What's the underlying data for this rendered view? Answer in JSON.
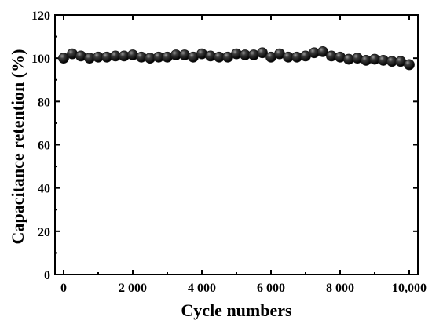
{
  "chart_data": {
    "type": "scatter",
    "xlabel": "Cycle numbers",
    "ylabel": "Capacitance retention (%)",
    "xlim": [
      -250,
      10250
    ],
    "ylim": [
      0,
      120
    ],
    "xticks": [
      0,
      2000,
      4000,
      6000,
      8000,
      10000
    ],
    "xtick_labels": [
      "0",
      "2 000",
      "4 000",
      "6 000",
      "8 000",
      "10,000"
    ],
    "yticks": [
      0,
      20,
      40,
      60,
      80,
      100,
      120
    ],
    "ytick_labels": [
      "0",
      "20",
      "40",
      "60",
      "80",
      "100",
      "120"
    ],
    "grid": false,
    "marker_color": "#1a1a1a",
    "series": [
      {
        "x": [
          0,
          250,
          500,
          750,
          1000,
          1250,
          1500,
          1750,
          2000,
          2250,
          2500,
          2750,
          3000,
          3250,
          3500,
          3750,
          4000,
          4250,
          4500,
          4750,
          5000,
          5250,
          5500,
          5750,
          6000,
          6250,
          6500,
          6750,
          7000,
          7250,
          7500,
          7750,
          8000,
          8250,
          8500,
          8750,
          9000,
          9250,
          9500,
          9750,
          10000
        ],
        "y": [
          100,
          102,
          101,
          100,
          100.5,
          100.5,
          101,
          101,
          101.5,
          100.5,
          100,
          100.5,
          100.5,
          101.5,
          101.5,
          100.5,
          102,
          101,
          100.5,
          100.5,
          102,
          101.5,
          101.5,
          102.5,
          100.5,
          102,
          100.5,
          100.5,
          101,
          102.5,
          103,
          101,
          100.5,
          99.5,
          100,
          99,
          99.5,
          99,
          98.5,
          98.5,
          97
        ]
      }
    ]
  }
}
